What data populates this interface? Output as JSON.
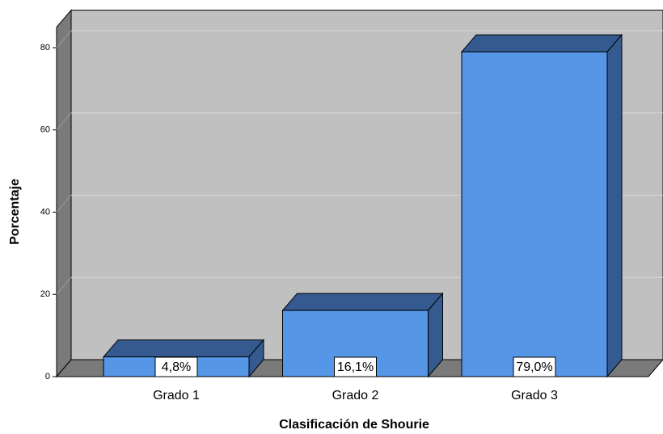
{
  "chart_data": {
    "type": "bar3d",
    "categories": [
      "Grado 1",
      "Grado 2",
      "Grado 3"
    ],
    "values": [
      4.8,
      16.1,
      79.0
    ],
    "value_labels": [
      "4,8%",
      "16,1%",
      "79,0%"
    ],
    "color": "#5596e6",
    "x_label": "Clasificación de Shourie",
    "y_label": "Porcentaje",
    "ylim": [
      0,
      85
    ],
    "yticks": [
      0,
      20,
      40,
      60,
      80
    ],
    "grid": true
  }
}
